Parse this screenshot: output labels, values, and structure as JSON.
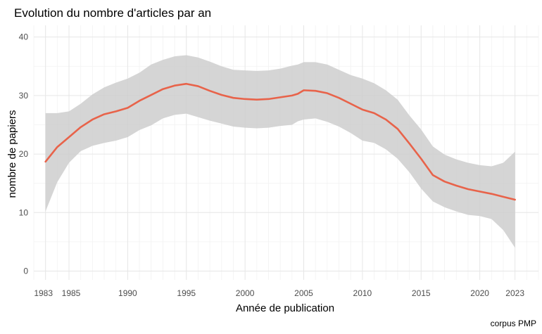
{
  "chart_data": {
    "type": "line",
    "title": "Evolution du nombre d'articles par an",
    "xlabel": "Année de publication",
    "ylabel": "nombre de papiers",
    "caption": "corpus PMP",
    "xlim": [
      1982,
      2025
    ],
    "ylim": [
      -1.5,
      42
    ],
    "x_ticks": [
      1983,
      1985,
      1990,
      1995,
      2000,
      2005,
      2010,
      2015,
      2020,
      2023
    ],
    "y_ticks": [
      0,
      10,
      20,
      30,
      40
    ],
    "grid": true,
    "legend": "none",
    "colors": {
      "line": "#e8634a",
      "ribbon": "#cccccc"
    },
    "series": [
      {
        "x": [
          1983,
          1984,
          1985,
          1986,
          1987,
          1988,
          1989,
          1990,
          1991,
          1992,
          1993,
          1994,
          1995,
          1996,
          1997,
          1998,
          1999,
          2000,
          2001,
          2002,
          2003,
          2004,
          2004.5,
          2005,
          2006,
          2007,
          2008,
          2009,
          2010,
          2011,
          2012,
          2013,
          2014,
          2015,
          2016,
          2017,
          2018,
          2019,
          2020,
          2021,
          2022,
          2023
        ],
        "y": [
          18.7,
          21.2,
          22.9,
          24.6,
          25.9,
          26.8,
          27.3,
          27.9,
          29.1,
          30.1,
          31.1,
          31.7,
          32.0,
          31.6,
          30.8,
          30.1,
          29.6,
          29.4,
          29.3,
          29.4,
          29.7,
          30.0,
          30.3,
          30.9,
          30.8,
          30.4,
          29.6,
          28.6,
          27.6,
          27.0,
          25.9,
          24.3,
          21.8,
          19.2,
          16.4,
          15.3,
          14.6,
          14.0,
          13.6,
          13.2,
          12.7,
          12.2
        ],
        "lower": [
          10.2,
          15.2,
          18.5,
          20.5,
          21.4,
          21.9,
          22.3,
          22.9,
          24.1,
          24.9,
          26.1,
          26.7,
          26.9,
          26.3,
          25.7,
          25.2,
          24.7,
          24.5,
          24.4,
          24.5,
          24.8,
          25.0,
          25.6,
          25.9,
          26.1,
          25.5,
          24.7,
          23.6,
          22.3,
          21.9,
          20.8,
          19.2,
          16.9,
          14.1,
          11.9,
          10.9,
          10.2,
          9.6,
          9.4,
          8.9,
          7.0,
          4.0
        ],
        "upper": [
          27.0,
          27.0,
          27.3,
          28.6,
          30.2,
          31.4,
          32.2,
          32.9,
          33.9,
          35.3,
          36.1,
          36.7,
          36.9,
          36.5,
          35.8,
          35.0,
          34.4,
          34.3,
          34.2,
          34.3,
          34.6,
          35.1,
          35.3,
          35.7,
          35.7,
          35.3,
          34.4,
          33.5,
          32.9,
          32.1,
          30.9,
          29.3,
          26.6,
          24.2,
          21.3,
          19.9,
          19.1,
          18.5,
          18.1,
          17.9,
          18.5,
          20.4
        ]
      }
    ]
  }
}
